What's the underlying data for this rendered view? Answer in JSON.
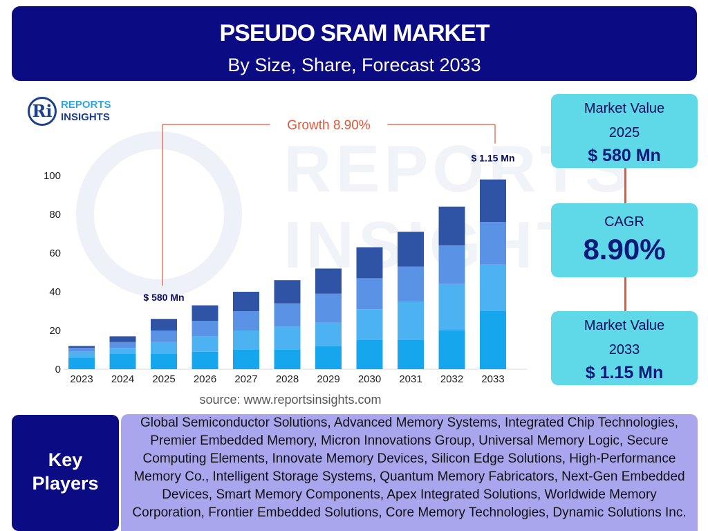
{
  "header": {
    "title": "PSEUDO SRAM MARKET",
    "subtitle": "By Size, Share, Forecast 2033"
  },
  "logo": {
    "mark": "Ri",
    "line1": "REPORTS",
    "line2": "INSIGHTS"
  },
  "watermark": {
    "line1": "REPORTS",
    "line2": "INSIGHTS"
  },
  "chart_data": {
    "type": "bar",
    "stacked": true,
    "categories": [
      "2023",
      "2024",
      "2025",
      "2026",
      "2027",
      "2028",
      "2029",
      "2030",
      "2031",
      "2032",
      "2033"
    ],
    "series": [
      {
        "values": [
          6,
          8,
          8,
          9,
          10,
          10,
          12,
          15,
          15,
          20,
          30
        ]
      },
      {
        "values": [
          3,
          3,
          6,
          8,
          10,
          12,
          12,
          16,
          20,
          24,
          24
        ]
      },
      {
        "values": [
          2,
          3,
          6,
          8,
          10,
          12,
          15,
          16,
          18,
          20,
          22
        ]
      },
      {
        "values": [
          1,
          3,
          6,
          8,
          10,
          12,
          13,
          16,
          18,
          20,
          22
        ]
      }
    ],
    "ylim": [
      0,
      100
    ],
    "yticks": [
      0,
      20,
      40,
      60,
      80,
      100
    ],
    "grid": false,
    "colors": [
      "#16a6ee",
      "#4db2f2",
      "#5a93e6",
      "#2f54a6"
    ],
    "annotations": [
      {
        "category": "2025",
        "text": "$ 580 Mn"
      },
      {
        "category": "2033",
        "text": "$ 1.15 Mn"
      }
    ],
    "growth_label": "Growth  8.90%",
    "growth_from": "2025",
    "growth_to": "2033",
    "growth_color": "#e2573a"
  },
  "source": "source: www.reportsinsights.com",
  "cards": {
    "start": {
      "label1": "Market Value",
      "label2": "2025",
      "value": "$ 580 Mn"
    },
    "cagr": {
      "label": "CAGR",
      "value": "8.90%"
    },
    "end": {
      "label1": "Market Value",
      "label2": "2033",
      "value": "$ 1.15 Mn"
    }
  },
  "key_players": {
    "title1": "Key",
    "title2": "Players",
    "text": "Global Semiconductor Solutions, Advanced Memory Systems, Integrated Chip Technologies, Premier Embedded Memory, Micron Innovations Group, Universal Memory Logic, Secure Computing Elements, Innovate Memory Devices, Silicon Edge Solutions, High-Performance Memory Co., Intelligent Storage Systems, Quantum Memory Fabricators, Next-Gen Embedded Devices, Smart Memory Components, Apex Integrated Solutions, Worldwide Memory Corporation, Frontier Embedded Solutions, Core Memory Technologies, Dynamic Solutions Inc."
  }
}
